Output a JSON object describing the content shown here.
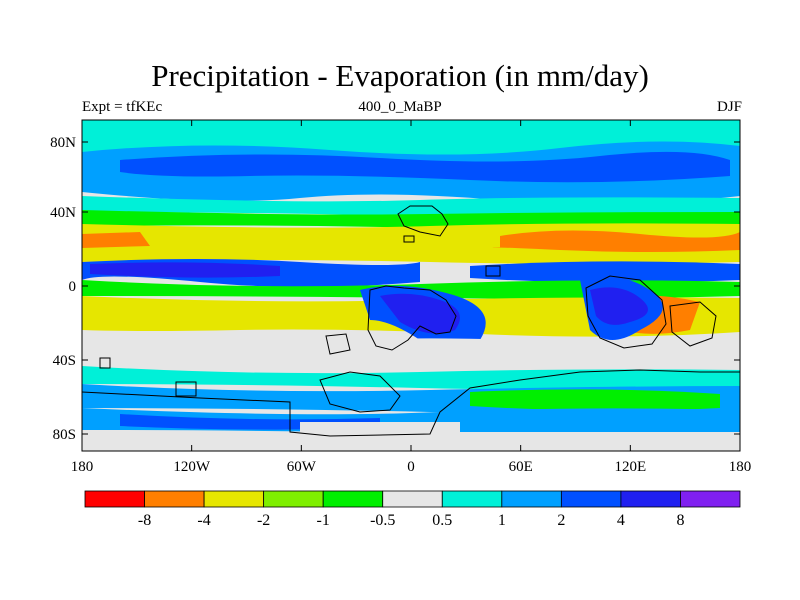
{
  "title": "Precipitation - Evaporation (in mm/day)",
  "subtitle_left": "Expt = tfKEc",
  "subtitle_center": "400_0_MaBP",
  "subtitle_right": "DJF",
  "lon_ticks": [
    "180",
    "120W",
    "60W",
    "0",
    "60E",
    "120E",
    "180"
  ],
  "lat_ticks": [
    "80N",
    "40N",
    "0",
    "40S",
    "80S"
  ],
  "colorbar": {
    "colors": [
      "#ff0000",
      "#ff7f00",
      "#e6e600",
      "#7fef00",
      "#00ef00",
      "#e6e6e6",
      "#00f0d8",
      "#00a0ff",
      "#0050ff",
      "#2020f0",
      "#8020f0"
    ],
    "labels": [
      "-8",
      "-4",
      "-2",
      "-1",
      "-0.5",
      "0.5",
      "1",
      "2",
      "4",
      "8"
    ]
  },
  "colors": {
    "land_outline": "#000000",
    "background": "#ffffff"
  }
}
